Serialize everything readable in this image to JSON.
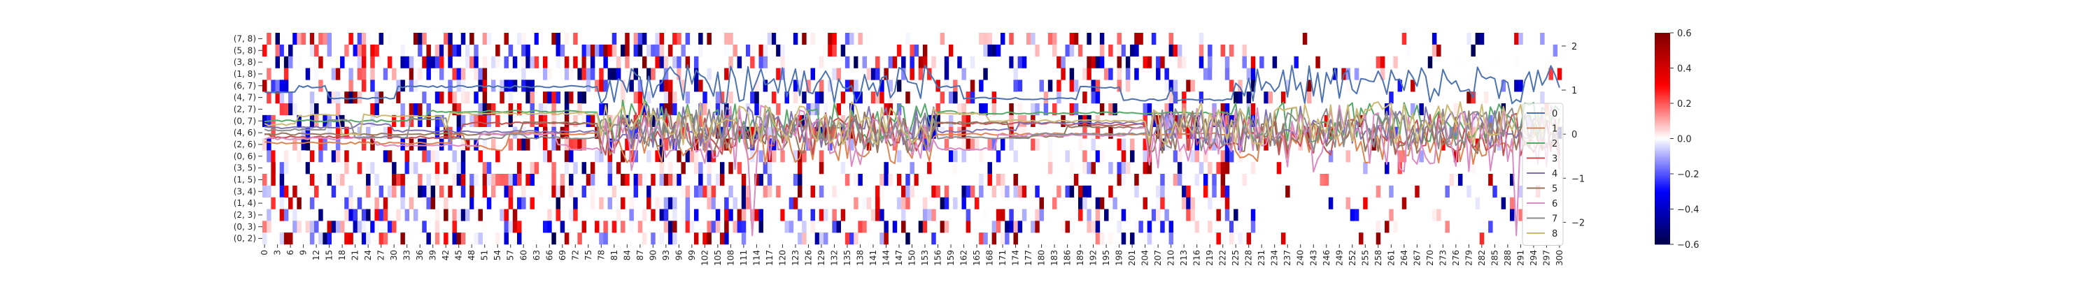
{
  "chart_data": {
    "type": "heatmap",
    "heatmap": {
      "row_labels": [
        "(7, 8)",
        "(5, 8)",
        "(3, 8)",
        "(1, 8)",
        "(6, 7)",
        "(4, 7)",
        "(2, 7)",
        "(0, 7)",
        "(4, 6)",
        "(2, 6)",
        "(0, 6)",
        "(3, 5)",
        "(1, 5)",
        "(3, 4)",
        "(1, 4)",
        "(2, 3)",
        "(0, 3)",
        "(0, 2)"
      ],
      "x_start": 0,
      "x_end": 300,
      "x_tick_step": 3,
      "x_tick_labels": [
        "0",
        "3",
        "6",
        "9",
        "12",
        "15",
        "18",
        "21",
        "24",
        "27",
        "30",
        "33",
        "36",
        "39",
        "42",
        "45",
        "48",
        "51",
        "54",
        "57",
        "60",
        "63",
        "66",
        "69",
        "72",
        "75",
        "78",
        "81",
        "84",
        "87",
        "90",
        "93",
        "96",
        "99",
        "102",
        "105",
        "108",
        "111",
        "114",
        "117",
        "120",
        "123",
        "126",
        "129",
        "132",
        "135",
        "138",
        "141",
        "144",
        "147",
        "150",
        "153",
        "156",
        "159",
        "162",
        "165",
        "168",
        "171",
        "174",
        "177",
        "180",
        "183",
        "186",
        "189",
        "192",
        "195",
        "198",
        "201",
        "204",
        "207",
        "210",
        "213",
        "216",
        "219",
        "222",
        "225",
        "228",
        "231",
        "234",
        "237",
        "240",
        "243",
        "246",
        "249",
        "252",
        "255",
        "258",
        "261",
        "264",
        "267",
        "270",
        "273",
        "276",
        "279",
        "282",
        "285",
        "288",
        "291",
        "294",
        "297",
        "300"
      ],
      "colorbar": {
        "min": -0.6,
        "max": 0.6,
        "ticks": [
          "0.6",
          "0.4",
          "0.2",
          "0.0",
          "−0.2",
          "−0.4",
          "−0.6"
        ],
        "tick_values": [
          0.6,
          0.4,
          0.2,
          0.0,
          -0.2,
          -0.4,
          -0.6
        ]
      },
      "cmap": "seismic"
    },
    "lines": {
      "y_ticks": [
        "2",
        "1",
        "0",
        "−1",
        "−2"
      ],
      "y_tick_values": [
        2,
        1,
        0,
        -1,
        -2
      ],
      "ylim": [
        -2.5,
        2.3
      ],
      "series": [
        {
          "name": "0",
          "color": "#4c72b0"
        },
        {
          "name": "1",
          "color": "#dd8452"
        },
        {
          "name": "2",
          "color": "#55a868"
        },
        {
          "name": "3",
          "color": "#c44e52"
        },
        {
          "name": "4",
          "color": "#8172b3"
        },
        {
          "name": "5",
          "color": "#937860"
        },
        {
          "name": "6",
          "color": "#da8bc3"
        },
        {
          "name": "7",
          "color": "#8c8c8c"
        },
        {
          "name": "8",
          "color": "#ccb974"
        }
      ],
      "legend_position": "right"
    }
  }
}
